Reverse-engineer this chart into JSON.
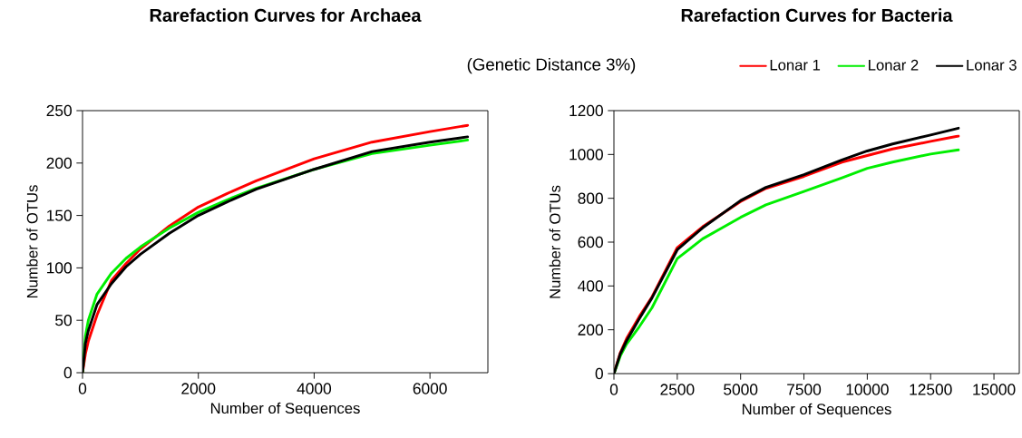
{
  "chart_data": [
    {
      "type": "line",
      "title": "Rarefaction Curves for Archaea",
      "xlabel": "Number of Sequences",
      "ylabel": "Number of OTUs",
      "xlim": [
        0,
        7000
      ],
      "ylim": [
        0,
        250
      ],
      "xticks": [
        0,
        2000,
        4000,
        6000
      ],
      "yticks": [
        0,
        50,
        100,
        150,
        200,
        250
      ],
      "series": [
        {
          "color": "#ff0000",
          "x": [
            0,
            50,
            100,
            250,
            500,
            750,
            1000,
            1500,
            2000,
            2500,
            3000,
            4000,
            5000,
            6000,
            6650
          ],
          "values": [
            0,
            18,
            30,
            55,
            88,
            104,
            118,
            140,
            158,
            171,
            183,
            204,
            220,
            230,
            236
          ]
        },
        {
          "color": "#00ee00",
          "x": [
            0,
            50,
            100,
            250,
            500,
            750,
            1000,
            1500,
            2000,
            2500,
            3000,
            4000,
            5000,
            6000,
            6650
          ],
          "values": [
            0,
            35,
            50,
            75,
            95,
            109,
            120,
            138,
            153,
            165,
            176,
            194,
            209,
            217,
            222
          ]
        },
        {
          "color": "#000000",
          "x": [
            0,
            50,
            100,
            250,
            500,
            750,
            1000,
            1500,
            2000,
            2500,
            3000,
            4000,
            5000,
            6000,
            6650
          ],
          "values": [
            0,
            28,
            40,
            65,
            85,
            101,
            113,
            133,
            150,
            163,
            175,
            194,
            211,
            220,
            225
          ]
        }
      ]
    },
    {
      "type": "line",
      "title": "Rarefaction Curves for Bacteria",
      "xlabel": "Number of Sequences",
      "ylabel": "Number of OTUs",
      "xlim": [
        0,
        16000
      ],
      "ylim": [
        0,
        1200
      ],
      "xticks": [
        0,
        2500,
        5000,
        7500,
        10000,
        12500,
        15000
      ],
      "yticks": [
        0,
        200,
        400,
        600,
        800,
        1000,
        1200
      ],
      "legend": "top right",
      "legend_title": "(Genetic Distance  3%)",
      "series": [
        {
          "name": "Lonar 1",
          "color": "#ff0000",
          "x": [
            0,
            250,
            500,
            1000,
            1500,
            2500,
            3500,
            5000,
            6000,
            7500,
            9000,
            10000,
            11000,
            12500,
            13600
          ],
          "values": [
            0,
            95,
            160,
            260,
            350,
            575,
            670,
            785,
            845,
            900,
            965,
            995,
            1025,
            1060,
            1084
          ]
        },
        {
          "name": "Lonar 2",
          "color": "#00ee00",
          "x": [
            0,
            250,
            500,
            1000,
            1500,
            2500,
            3500,
            5000,
            6000,
            7500,
            9000,
            10000,
            11000,
            12500,
            13600
          ],
          "values": [
            0,
            80,
            135,
            214,
            300,
            525,
            615,
            713,
            770,
            831,
            893,
            937,
            965,
            1002,
            1021
          ]
        },
        {
          "name": "Lonar 3",
          "color": "#000000",
          "x": [
            0,
            250,
            500,
            1000,
            1500,
            2500,
            3500,
            5000,
            6000,
            7500,
            9000,
            10000,
            11000,
            12500,
            13600
          ],
          "values": [
            0,
            90,
            150,
            250,
            345,
            565,
            665,
            790,
            850,
            908,
            975,
            1016,
            1048,
            1089,
            1120
          ]
        }
      ]
    }
  ]
}
